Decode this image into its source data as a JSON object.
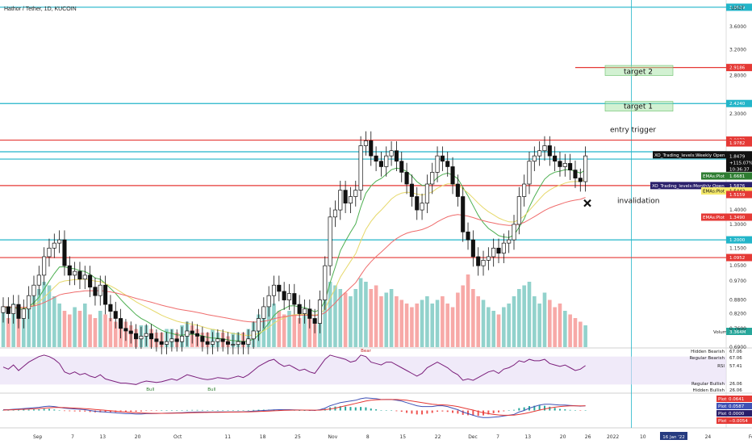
{
  "header": {
    "title": "Hathor / Tether, 1D, KUCOIN",
    "currency": "USDT"
  },
  "colors": {
    "up": "#26a69a",
    "down": "#ef5350",
    "red_line": "#e53935",
    "cyan_line": "#22b5c9",
    "ema_green": "#4caf50",
    "ema_yellow": "#e6d86a",
    "ema_red": "#ef6c6c",
    "dotted": "#888888",
    "rsi_band": "#e6dcf5",
    "rsi_line": "#7b1f7b",
    "macd_blue": "#3f51b5",
    "macd_red": "#e53935",
    "target_box": "#a5e3a5"
  },
  "chart_data": {
    "type": "candlestick",
    "log_scale": true,
    "ylim": [
      0.69,
      4.1
    ],
    "price_labels": [
      "4.",
      "3.6000",
      "3.2000",
      "2.8000",
      "2.3000",
      "2.0000",
      "1.7500",
      "1.6000",
      "1.5000",
      "1.4000",
      "1.3000",
      "1.1500",
      "1.0500",
      "0.9700",
      "0.8800",
      "0.8200",
      "0.7600",
      "0.6900"
    ],
    "price_label_values": [
      4.0,
      3.6,
      3.2,
      2.8,
      2.3,
      2.0,
      1.75,
      1.6,
      1.5,
      1.4,
      1.3,
      1.15,
      1.05,
      0.97,
      0.88,
      0.82,
      0.76,
      0.69
    ],
    "date_labels": [
      "Sep",
      "7",
      "13",
      "20",
      "Oct",
      "11",
      "18",
      "25",
      "Nov",
      "8",
      "15",
      "22",
      "Dec",
      "7",
      "13",
      "20",
      "26",
      "2022",
      "10",
      "16 Jan '22",
      "24",
      "Feb"
    ],
    "highlight_date": "16 Jan '22",
    "price_tags": [
      {
        "text": "3.9829",
        "value": 3.9829,
        "kind": "cyan"
      },
      {
        "text": "2.9186",
        "value": 2.9186,
        "kind": "red"
      },
      {
        "text": "2.4240",
        "value": 2.424,
        "kind": "cyan"
      },
      {
        "text": "2.0072",
        "value": 2.0072,
        "kind": "red"
      },
      {
        "text": "1.9782",
        "value": 1.9782,
        "kind": "red"
      },
      {
        "text": "1.8605",
        "value": 1.8605,
        "kind": "dark"
      },
      {
        "text": "1.6681",
        "value": 1.6681,
        "kind": "green"
      },
      {
        "text": "1.5876",
        "value": 1.5876,
        "kind": "purple"
      },
      {
        "text": "1.5442",
        "value": 1.5442,
        "kind": "yellow"
      },
      {
        "text": "1.5159",
        "value": 1.5159,
        "kind": "red"
      },
      {
        "text": "1.3490",
        "value": 1.349,
        "kind": "red"
      },
      {
        "text": "1.2000",
        "value": 1.2,
        "kind": "cyan"
      },
      {
        "text": "1.0952",
        "value": 1.0952,
        "kind": "red"
      }
    ],
    "current_price": {
      "price": "1.8479",
      "change": "+115.07%",
      "timer": "10:36:37",
      "value": 1.8479
    },
    "price_lines": [
      {
        "value": 3.9829,
        "kind": "cyan"
      },
      {
        "value": 2.9186,
        "kind": "red",
        "from_date": 112
      },
      {
        "value": 2.424,
        "kind": "cyan"
      },
      {
        "value": 2.0072,
        "kind": "red"
      },
      {
        "value": 1.89,
        "kind": "cyan"
      },
      {
        "value": 1.82,
        "kind": "cyan"
      },
      {
        "value": 1.5876,
        "kind": "red"
      },
      {
        "value": 1.2,
        "kind": "cyan"
      },
      {
        "value": 1.0952,
        "kind": "red"
      }
    ],
    "side_labels": [
      {
        "text": "XO_Trading_levels:Weekly Open",
        "value": 1.8605
      },
      {
        "text": "EMAs:Plot",
        "value": 1.6681
      },
      {
        "text": "XO_Trading_levels:Monthly Open",
        "value": 1.5876
      },
      {
        "text": "EMAs:Plot",
        "value": 1.5442
      },
      {
        "text": "EMAs:Plot",
        "value": 1.349
      }
    ],
    "annotations": {
      "target2": "target 2",
      "target1": "target 1",
      "entry": "entry trigger",
      "invalidation": "invalidation",
      "volume": "Volume",
      "volume_value": "3.364M"
    },
    "target_boxes": [
      {
        "label": "target 2",
        "low": 2.8,
        "high": 2.95
      },
      {
        "label": "target 1",
        "low": 2.33,
        "high": 2.45
      }
    ],
    "invalidation_price": 1.45,
    "closes": [
      0.85,
      0.82,
      0.86,
      0.8,
      0.84,
      0.9,
      0.95,
      1.0,
      1.1,
      1.15,
      1.18,
      1.2,
      1.05,
      1.0,
      1.02,
      0.98,
      1.0,
      0.94,
      0.9,
      0.95,
      0.86,
      0.83,
      0.8,
      0.76,
      0.75,
      0.74,
      0.72,
      0.73,
      0.74,
      0.72,
      0.71,
      0.7,
      0.71,
      0.72,
      0.71,
      0.73,
      0.75,
      0.74,
      0.73,
      0.71,
      0.7,
      0.71,
      0.72,
      0.71,
      0.7,
      0.7,
      0.71,
      0.7,
      0.72,
      0.75,
      0.8,
      0.85,
      0.9,
      0.95,
      0.92,
      0.88,
      0.91,
      0.86,
      0.82,
      0.84,
      0.8,
      0.78,
      0.88,
      1.05,
      1.35,
      1.4,
      1.55,
      1.45,
      1.5,
      1.55,
      1.95,
      2.0,
      1.85,
      1.8,
      1.75,
      1.85,
      1.9,
      1.8,
      1.7,
      1.6,
      1.5,
      1.4,
      1.45,
      1.6,
      1.7,
      1.85,
      1.8,
      1.75,
      1.6,
      1.5,
      1.25,
      1.2,
      1.1,
      1.05,
      1.08,
      1.1,
      1.15,
      1.12,
      1.18,
      1.2,
      1.3,
      1.5,
      1.6,
      1.8,
      1.85,
      1.9,
      1.95,
      1.85,
      1.8,
      1.75,
      1.78,
      1.72,
      1.65,
      1.62,
      1.85
    ],
    "volume_rel": [
      0.5,
      0.4,
      0.6,
      0.5,
      0.45,
      0.6,
      0.7,
      0.8,
      0.9,
      0.85,
      0.7,
      0.6,
      0.5,
      0.45,
      0.55,
      0.5,
      0.6,
      0.45,
      0.4,
      0.5,
      0.45,
      0.4,
      0.35,
      0.3,
      0.35,
      0.3,
      0.25,
      0.3,
      0.3,
      0.25,
      0.2,
      0.2,
      0.25,
      0.25,
      0.2,
      0.3,
      0.35,
      0.3,
      0.25,
      0.2,
      0.2,
      0.25,
      0.2,
      0.2,
      0.15,
      0.2,
      0.2,
      0.2,
      0.25,
      0.35,
      0.45,
      0.5,
      0.55,
      0.6,
      0.5,
      0.45,
      0.5,
      0.45,
      0.4,
      0.45,
      0.4,
      0.35,
      0.5,
      0.7,
      0.9,
      0.85,
      0.8,
      0.75,
      0.7,
      0.8,
      0.95,
      0.9,
      0.8,
      0.85,
      0.7,
      0.75,
      0.8,
      0.7,
      0.65,
      0.6,
      0.55,
      0.6,
      0.65,
      0.7,
      0.6,
      0.65,
      0.7,
      0.6,
      0.55,
      0.75,
      0.85,
      1.0,
      0.8,
      0.7,
      0.65,
      0.55,
      0.5,
      0.45,
      0.55,
      0.6,
      0.7,
      0.8,
      0.85,
      0.9,
      0.7,
      0.6,
      0.75,
      0.65,
      0.55,
      0.6,
      0.5,
      0.45,
      0.4,
      0.35,
      0.3
    ],
    "rsi": {
      "values": [
        55,
        52,
        58,
        50,
        56,
        62,
        66,
        70,
        72,
        70,
        66,
        60,
        48,
        45,
        48,
        44,
        46,
        42,
        40,
        44,
        38,
        36,
        34,
        32,
        32,
        31,
        30,
        33,
        35,
        34,
        33,
        34,
        36,
        38,
        36,
        40,
        44,
        42,
        40,
        38,
        37,
        38,
        40,
        39,
        38,
        40,
        42,
        40,
        44,
        50,
        56,
        60,
        64,
        66,
        60,
        56,
        58,
        54,
        50,
        52,
        48,
        46,
        56,
        66,
        72,
        70,
        68,
        66,
        62,
        64,
        72,
        70,
        62,
        60,
        58,
        62,
        62,
        58,
        54,
        50,
        46,
        42,
        46,
        54,
        58,
        62,
        58,
        54,
        48,
        44,
        36,
        38,
        36,
        40,
        44,
        48,
        50,
        46,
        52,
        54,
        58,
        64,
        62,
        66,
        64,
        64,
        66,
        60,
        58,
        56,
        58,
        54,
        50,
        52,
        57
      ],
      "ylim": [
        20,
        80
      ],
      "labels": [
        "Hidden Bearish",
        "Regular Bearish",
        "RSI",
        "Regular Bullish",
        "Hidden Bullish"
      ],
      "label_values": [
        "67.06",
        "67.06",
        "57.41",
        "26.06",
        "26.06"
      ],
      "markers": [
        "Bear",
        "Bull",
        "Bull"
      ]
    },
    "macd": {
      "macd": [
        0.01,
        0.01,
        0.015,
        0.02,
        0.025,
        0.03,
        0.035,
        0.04,
        0.05,
        0.055,
        0.05,
        0.04,
        0.03,
        0.025,
        0.02,
        0.015,
        0.01,
        0.0,
        -0.01,
        -0.015,
        -0.02,
        -0.025,
        -0.03,
        -0.035,
        -0.04,
        -0.04,
        -0.045,
        -0.045,
        -0.04,
        -0.04,
        -0.038,
        -0.036,
        -0.034,
        -0.032,
        -0.03,
        -0.028,
        -0.025,
        -0.022,
        -0.02,
        -0.02,
        -0.02,
        -0.019,
        -0.018,
        -0.018,
        -0.018,
        -0.017,
        -0.016,
        -0.015,
        -0.012,
        -0.008,
        -0.004,
        0.0,
        0.004,
        0.008,
        0.01,
        0.01,
        0.01,
        0.008,
        0.006,
        0.005,
        0.003,
        0.001,
        0.01,
        0.03,
        0.06,
        0.08,
        0.1,
        0.11,
        0.12,
        0.13,
        0.15,
        0.16,
        0.155,
        0.15,
        0.14,
        0.14,
        0.14,
        0.13,
        0.12,
        0.1,
        0.08,
        0.06,
        0.05,
        0.05,
        0.05,
        0.06,
        0.06,
        0.05,
        0.03,
        0.01,
        -0.02,
        -0.04,
        -0.06,
        -0.08,
        -0.09,
        -0.09,
        -0.085,
        -0.08,
        -0.07,
        -0.06,
        -0.05,
        -0.02,
        0.0,
        0.03,
        0.05,
        0.07,
        0.08,
        0.08,
        0.075,
        0.07,
        0.07,
        0.065,
        0.06,
        0.055,
        0.06
      ],
      "signal": [
        0.005,
        0.007,
        0.009,
        0.012,
        0.015,
        0.018,
        0.022,
        0.026,
        0.03,
        0.035,
        0.038,
        0.039,
        0.037,
        0.034,
        0.031,
        0.027,
        0.023,
        0.019,
        0.013,
        0.008,
        0.003,
        -0.003,
        -0.009,
        -0.015,
        -0.02,
        -0.025,
        -0.029,
        -0.032,
        -0.034,
        -0.036,
        -0.036,
        -0.036,
        -0.036,
        -0.035,
        -0.034,
        -0.033,
        -0.031,
        -0.029,
        -0.027,
        -0.026,
        -0.025,
        -0.024,
        -0.023,
        -0.022,
        -0.021,
        -0.02,
        -0.019,
        -0.018,
        -0.017,
        -0.015,
        -0.013,
        -0.01,
        -0.007,
        -0.004,
        -0.001,
        0.002,
        0.004,
        0.005,
        0.005,
        0.005,
        0.005,
        0.004,
        0.005,
        0.01,
        0.02,
        0.03,
        0.045,
        0.06,
        0.075,
        0.09,
        0.105,
        0.12,
        0.13,
        0.135,
        0.138,
        0.139,
        0.14,
        0.139,
        0.136,
        0.13,
        0.12,
        0.11,
        0.1,
        0.09,
        0.08,
        0.075,
        0.072,
        0.068,
        0.06,
        0.05,
        0.035,
        0.02,
        0.005,
        -0.012,
        -0.028,
        -0.04,
        -0.05,
        -0.056,
        -0.06,
        -0.06,
        -0.058,
        -0.05,
        -0.04,
        -0.026,
        -0.01,
        0.005,
        0.02,
        0.032,
        0.042,
        0.05,
        0.055,
        0.058,
        0.059,
        0.059,
        0.059
      ],
      "ylim": [
        -0.2,
        0.2
      ],
      "labels": [
        "Plot",
        "Plot",
        "Plot",
        "Plot"
      ],
      "label_values": [
        "0.0641",
        "0.0587",
        "0.0000",
        "−0.0054"
      ]
    }
  }
}
